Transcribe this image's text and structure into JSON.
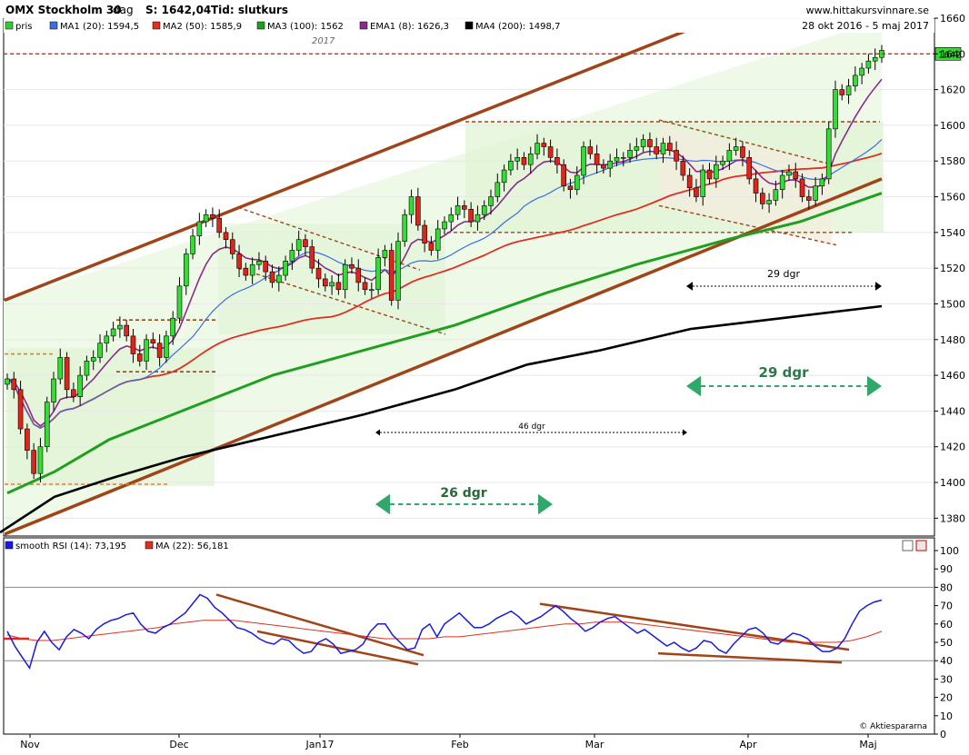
{
  "header": {
    "title": "OMX Stockholm 30",
    "period": "dag",
    "last_label": "S: 1642,04",
    "time_label": "Tid: slutkurs",
    "site": "www.hittakursvinnare.se",
    "date_range": "28 okt 2016 - 5 maj 2017",
    "year_marker": "2017"
  },
  "legend": [
    {
      "label": "pris",
      "color": "#33cc33"
    },
    {
      "label": "MA1 (20): 1594,5",
      "color": "#3b6fe0"
    },
    {
      "label": "MA2 (50): 1585,9",
      "color": "#e03020"
    },
    {
      "label": "MA3 (100): 1562",
      "color": "#1fa01f"
    },
    {
      "label": "EMA1 (8): 1626,3",
      "color": "#8a2b8a"
    },
    {
      "label": "MA4 (200): 1498,7",
      "color": "#000000"
    }
  ],
  "last_price_tag": "1642",
  "annotations": {
    "span_29_small": "29 dgr",
    "span_29_big": "29 dgr",
    "span_46": "46 dgr",
    "span_26": "26 dgr"
  },
  "rsi": {
    "legend": [
      {
        "label": "smooth RSI (14): 73,195",
        "color": "#1a1ae0"
      },
      {
        "label": "MA (22): 56,181",
        "color": "#e03020"
      }
    ],
    "yticks": [
      0,
      10,
      20,
      30,
      40,
      50,
      60,
      70,
      80,
      90,
      100
    ],
    "lines": [
      40,
      80
    ],
    "credit": "© Aktiespararna"
  },
  "months": [
    "Nov",
    "Dec",
    "Jan17",
    "Feb",
    "Mar",
    "Apr",
    "Maj"
  ],
  "chart_data": {
    "type": "candlestick",
    "title": "OMX Stockholm 30",
    "ylim": [
      1370,
      1660
    ],
    "yticks": [
      1380,
      1400,
      1420,
      1440,
      1460,
      1480,
      1500,
      1520,
      1540,
      1560,
      1580,
      1600,
      1620,
      1640,
      1660
    ],
    "x_range": [
      "28 okt 2016",
      "5 maj 2017"
    ],
    "close": [
      1458,
      1452,
      1430,
      1418,
      1405,
      1420,
      1445,
      1458,
      1470,
      1452,
      1448,
      1460,
      1468,
      1470,
      1478,
      1482,
      1486,
      1488,
      1482,
      1472,
      1468,
      1480,
      1478,
      1470,
      1482,
      1492,
      1510,
      1528,
      1538,
      1546,
      1550,
      1548,
      1540,
      1536,
      1528,
      1520,
      1516,
      1522,
      1524,
      1518,
      1512,
      1516,
      1524,
      1530,
      1536,
      1532,
      1520,
      1514,
      1510,
      1512,
      1508,
      1522,
      1520,
      1512,
      1508,
      1508,
      1526,
      1530,
      1502,
      1535,
      1550,
      1560,
      1544,
      1534,
      1530,
      1542,
      1546,
      1550,
      1555,
      1553,
      1546,
      1550,
      1555,
      1560,
      1568,
      1575,
      1580,
      1582,
      1578,
      1584,
      1590,
      1588,
      1582,
      1578,
      1566,
      1564,
      1572,
      1588,
      1584,
      1578,
      1576,
      1580,
      1582,
      1582,
      1586,
      1588,
      1592,
      1588,
      1584,
      1590,
      1586,
      1580,
      1572,
      1565,
      1560,
      1575,
      1570,
      1578,
      1580,
      1586,
      1588,
      1582,
      1570,
      1562,
      1556,
      1558,
      1564,
      1572,
      1574,
      1570,
      1560,
      1558,
      1566,
      1570,
      1598,
      1620,
      1617,
      1622,
      1628,
      1632,
      1636,
      1638,
      1642
    ],
    "series": [
      {
        "name": "MA1 (20)",
        "last": 1594.5
      },
      {
        "name": "MA2 (50)",
        "last": 1585.9
      },
      {
        "name": "MA3 (100)",
        "last": 1562
      },
      {
        "name": "EMA1 (8)",
        "last": 1626.3
      },
      {
        "name": "MA4 (200)",
        "last": 1498.7
      }
    ],
    "ma200": [
      [
        0,
        1372
      ],
      [
        60,
        1392
      ],
      [
        120,
        1402
      ],
      [
        200,
        1414
      ],
      [
        300,
        1426
      ],
      [
        400,
        1438
      ],
      [
        500,
        1452
      ],
      [
        580,
        1466
      ],
      [
        660,
        1474
      ],
      [
        760,
        1486
      ],
      [
        860,
        1492
      ],
      [
        970,
        1498.7
      ]
    ],
    "ma100": [
      [
        8,
        1394
      ],
      [
        60,
        1406
      ],
      [
        120,
        1424
      ],
      [
        200,
        1440
      ],
      [
        300,
        1460
      ],
      [
        400,
        1474
      ],
      [
        500,
        1488
      ],
      [
        600,
        1506
      ],
      [
        700,
        1522
      ],
      [
        800,
        1536
      ],
      [
        880,
        1546
      ],
      [
        970,
        1562
      ]
    ],
    "channel_upper": [
      [
        5,
        1502
      ],
      [
        760,
        1654
      ]
    ],
    "channel_lower": [
      [
        5,
        1371
      ],
      [
        970,
        1570
      ]
    ],
    "rsi_values": [
      56,
      48,
      42,
      36,
      50,
      56,
      50,
      46,
      53,
      57,
      55,
      52,
      57,
      60,
      62,
      63,
      65,
      66,
      60,
      56,
      55,
      58,
      60,
      63,
      66,
      71,
      76,
      74,
      69,
      66,
      62,
      58,
      57,
      55,
      52,
      50,
      49,
      52,
      51,
      47,
      44,
      45,
      50,
      52,
      49,
      44,
      45,
      46,
      49,
      56,
      60,
      60,
      54,
      50,
      46,
      47,
      57,
      60,
      53,
      60,
      63,
      66,
      62,
      58,
      58,
      60,
      63,
      65,
      67,
      64,
      60,
      62,
      64,
      67,
      70,
      67,
      63,
      60,
      56,
      58,
      61,
      63,
      64,
      61,
      58,
      55,
      57,
      54,
      51,
      48,
      50,
      47,
      45,
      47,
      51,
      50,
      46,
      44,
      49,
      53,
      57,
      58,
      55,
      50,
      49,
      52,
      55,
      54,
      52,
      48,
      45,
      45,
      47,
      52,
      60,
      67,
      70,
      72,
      73
    ],
    "rsi_ma": [
      54,
      52,
      51,
      51,
      52,
      53,
      54,
      55,
      56,
      57,
      58,
      60,
      61,
      62,
      62,
      62,
      61,
      60,
      59,
      58,
      57,
      56,
      55,
      54,
      53,
      52,
      52,
      52,
      52,
      53,
      53,
      54,
      55,
      56,
      57,
      58,
      59,
      60,
      60,
      61,
      61,
      61,
      60,
      59,
      58,
      57,
      56,
      55,
      54,
      53,
      52,
      51,
      50,
      50,
      50,
      50,
      51,
      53,
      56
    ]
  }
}
